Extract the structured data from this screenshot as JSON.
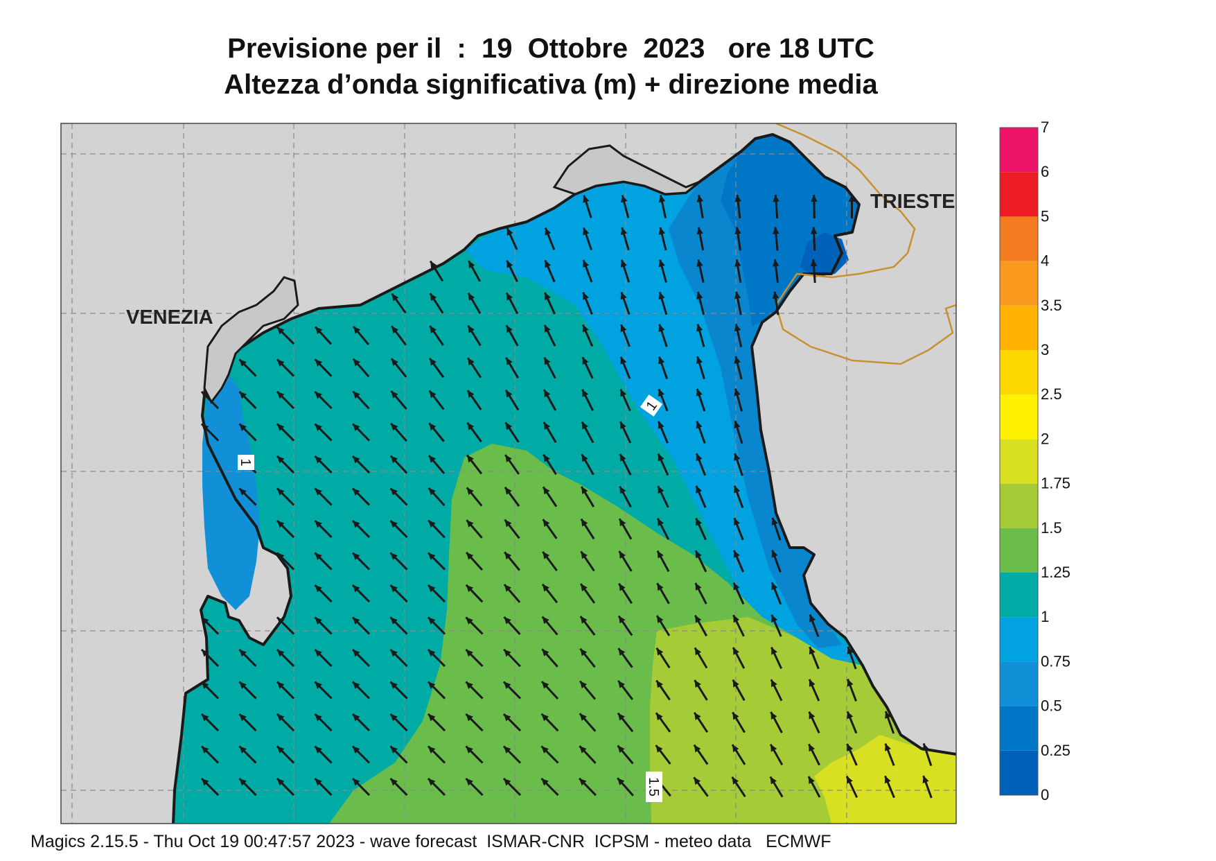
{
  "title": {
    "line1": "Previsione per il  :  19  Ottobre  2023   ore 18 UTC",
    "line2": "Altezza d’onda significativa (m) + direzione media"
  },
  "map": {
    "cities": [
      {
        "name": "VENEZIA"
      },
      {
        "name": "TRIESTE"
      }
    ],
    "contour_labels": [
      "1",
      "1",
      "1.5"
    ],
    "band_colors": [
      "#0061b8",
      "#0077c6",
      "#1190d8",
      "#00a2e0",
      "#00aaa5",
      "#6abd4b",
      "#a5cc36",
      "#d9e021",
      "#fff200",
      "#ffd800",
      "#ffb300",
      "#f99a1e",
      "#f37c21",
      "#ed1c24",
      "#ec1467"
    ],
    "land_color": "#d3d3d3",
    "sea_color": "#00aaa5",
    "arrow_direction": "north-west"
  },
  "legend": {
    "labels": [
      "0",
      "0.25",
      "0.5",
      "0.75",
      "1",
      "1.25",
      "1.5",
      "1.75",
      "2",
      "2.5",
      "3",
      "3.5",
      "4",
      "5",
      "6",
      "7"
    ],
    "colors": [
      "#0061b8",
      "#0077c6",
      "#1190d8",
      "#00a2e0",
      "#00aaa5",
      "#6abd4b",
      "#a5cc36",
      "#d9e021",
      "#fff200",
      "#ffd800",
      "#ffb300",
      "#f99a1e",
      "#f37c21",
      "#ed1c24",
      "#ec1467"
    ]
  },
  "footer": "Magics 2.15.5 - Thu Oct 19 00:47:57 2023 - wave forecast  ISMAR-CNR  ICPSM - meteo data   ECMWF"
}
